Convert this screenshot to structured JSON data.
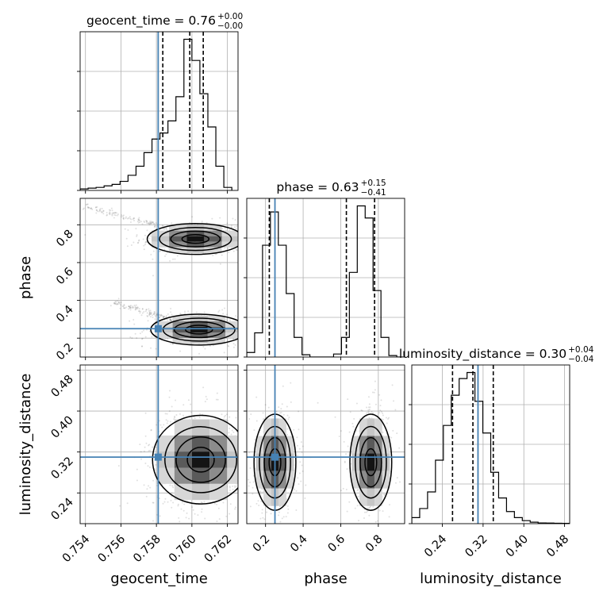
{
  "chart_data": {
    "type": "corner",
    "parameters": [
      "geocent_time",
      "phase",
      "luminosity_distance"
    ],
    "truths": {
      "geocent_time": 0.7581,
      "phase": 0.25,
      "luminosity_distance": 0.31
    },
    "axes": {
      "geocent_time": {
        "range": [
          0.7537,
          0.7626
        ],
        "ticks": [
          0.754,
          0.756,
          0.758,
          0.76,
          0.762
        ],
        "tick_labels": [
          "0.754",
          "0.756",
          "0.758",
          "0.760",
          "0.762"
        ]
      },
      "phase": {
        "range": [
          0.1,
          0.94
        ],
        "ticks": [
          0.2,
          0.4,
          0.6,
          0.8
        ],
        "tick_labels": [
          "0.2",
          "0.4",
          "0.6",
          "0.8"
        ]
      },
      "luminosity_distance": {
        "range": [
          0.18,
          0.49
        ],
        "ticks": [
          0.24,
          0.32,
          0.4,
          0.48
        ],
        "tick_labels": [
          "0.24",
          "0.32",
          "0.40",
          "0.48"
        ]
      }
    },
    "titles": [
      {
        "param": "geocent_time",
        "label": "geocent_time = 0.76",
        "plus": "+0.00",
        "minus": "−0.00"
      },
      {
        "param": "phase",
        "label": "phase = 0.63",
        "plus": "+0.15",
        "minus": "−0.41"
      },
      {
        "param": "luminosity_distance",
        "label": "luminosity_distance = 0.30",
        "plus": "+0.04",
        "minus": "−0.04"
      }
    ],
    "histograms": {
      "geocent_time": {
        "edges_start": 0.7537,
        "bin_width": 0.00045,
        "counts": [
          0.01,
          0.015,
          0.02,
          0.03,
          0.04,
          0.06,
          0.1,
          0.16,
          0.25,
          0.34,
          0.38,
          0.46,
          0.62,
          1.0,
          0.86,
          0.64,
          0.42,
          0.16,
          0.02
        ],
        "quantiles": [
          0.75836,
          0.75988,
          0.76064
        ]
      },
      "phase": {
        "edges_start": 0.1,
        "bin_width": 0.042,
        "counts": [
          0.03,
          0.16,
          0.74,
          0.96,
          0.74,
          0.42,
          0.13,
          0.015,
          0.0,
          0.0,
          0.0,
          0.02,
          0.13,
          0.56,
          1.0,
          0.92,
          0.44,
          0.13,
          0.01,
          0.0
        ],
        "quantiles": [
          0.22,
          0.63,
          0.78
        ]
      },
      "luminosity_distance": {
        "edges_start": 0.18,
        "bin_width": 0.0155,
        "counts": [
          0.04,
          0.1,
          0.21,
          0.42,
          0.65,
          0.85,
          0.96,
          1.0,
          0.81,
          0.6,
          0.34,
          0.17,
          0.08,
          0.04,
          0.02,
          0.01,
          0.005,
          0.004,
          0.003,
          0.002
        ],
        "quantiles": [
          0.26,
          0.3,
          0.34
        ]
      }
    },
    "density_2d": {
      "phase_vs_geocent_time": {
        "modes": [
          {
            "center": [
              0.7602,
              0.725
            ],
            "spread": [
              0.0011,
              0.033
            ],
            "weight": 0.5
          },
          {
            "center": [
              0.7604,
              0.245
            ],
            "spread": [
              0.0011,
              0.033
            ],
            "weight": 0.5
          }
        ],
        "tails": [
          {
            "from": [
              0.754,
              0.9
            ],
            "to": [
              0.7598,
              0.755
            ]
          },
          {
            "from": [
              0.7555,
              0.39
            ],
            "to": [
              0.76,
              0.27
            ]
          }
        ]
      },
      "luminosity_distance_vs_geocent_time": {
        "modes": [
          {
            "center": [
              0.7605,
              0.305
            ],
            "spread": [
              0.0011,
              0.035
            ],
            "weight": 1.0
          }
        ]
      },
      "luminosity_distance_vs_phase": {
        "modes": [
          {
            "center": [
              0.25,
              0.3
            ],
            "spread": [
              0.045,
              0.038
            ],
            "weight": 0.5
          },
          {
            "center": [
              0.76,
              0.3
            ],
            "spread": [
              0.045,
              0.038
            ],
            "weight": 0.5
          }
        ]
      }
    },
    "colors": {
      "truth": "#4682b4",
      "hist": "#000000",
      "grid": "#b0b0b0"
    },
    "grid": true
  }
}
